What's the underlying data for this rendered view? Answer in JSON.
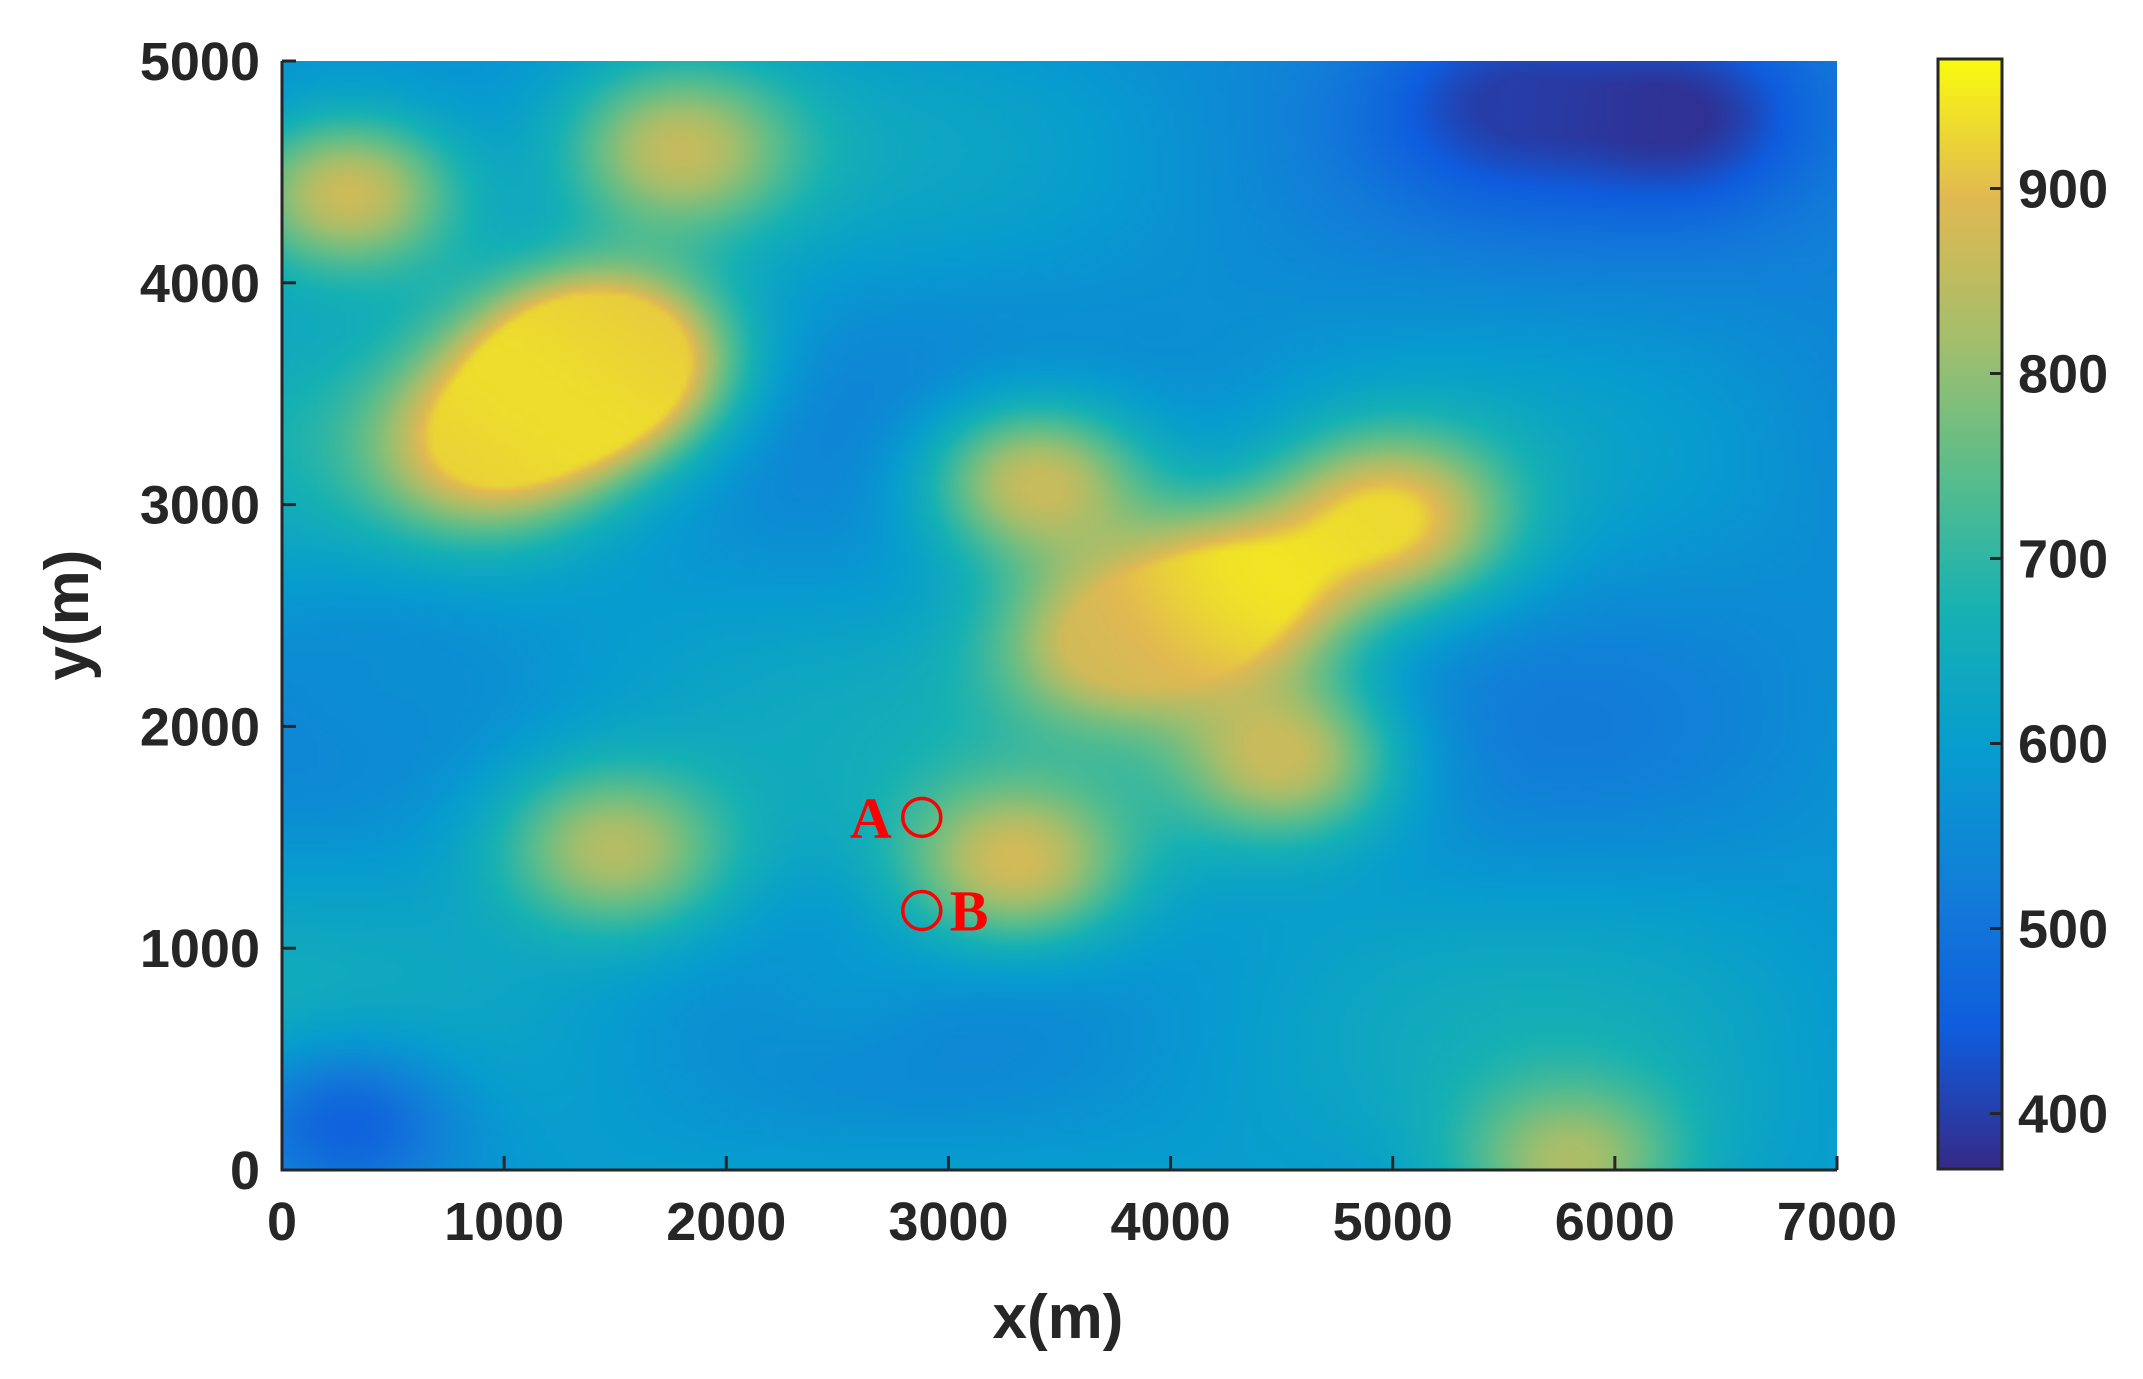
{
  "chart_data": {
    "type": "heatmap",
    "title": "",
    "xlabel": "x(m)",
    "ylabel": "y(m)",
    "xlim": [
      0,
      7000
    ],
    "ylim": [
      0,
      5000
    ],
    "x_ticks": [
      "0",
      "1000",
      "2000",
      "3000",
      "4000",
      "5000",
      "6000",
      "7000"
    ],
    "y_ticks": [
      "0",
      "1000",
      "2000",
      "3000",
      "4000",
      "5000"
    ],
    "colorbar": {
      "colormap": "parula",
      "range": [
        370,
        970
      ],
      "ticks": [
        "400",
        "500",
        "600",
        "700",
        "800",
        "900"
      ]
    },
    "grid": false,
    "field_features": [
      {
        "x": 1300,
        "y": 3550,
        "value": 965
      },
      {
        "x": 900,
        "y": 3250,
        "value": 920
      },
      {
        "x": 1500,
        "y": 3700,
        "value": 900
      },
      {
        "x": 300,
        "y": 4400,
        "value": 870
      },
      {
        "x": 1800,
        "y": 4600,
        "value": 860
      },
      {
        "x": 4300,
        "y": 2600,
        "value": 955
      },
      {
        "x": 5000,
        "y": 2950,
        "value": 930
      },
      {
        "x": 3700,
        "y": 2350,
        "value": 870
      },
      {
        "x": 3400,
        "y": 3100,
        "value": 860
      },
      {
        "x": 3300,
        "y": 1400,
        "value": 880
      },
      {
        "x": 1500,
        "y": 1450,
        "value": 840
      },
      {
        "x": 4500,
        "y": 1850,
        "value": 860
      },
      {
        "x": 5800,
        "y": 50,
        "value": 830
      },
      {
        "x": 6300,
        "y": 4750,
        "value": 380
      },
      {
        "x": 5500,
        "y": 4800,
        "value": 400
      },
      {
        "x": 300,
        "y": 200,
        "value": 460
      },
      {
        "x": 500,
        "y": 2200,
        "value": 560
      },
      {
        "x": 2500,
        "y": 850,
        "value": 580
      }
    ],
    "annotations": [
      {
        "label": "A",
        "x": 2880,
        "y": 1590
      },
      {
        "label": "B",
        "x": 2880,
        "y": 1170
      }
    ]
  },
  "colors": {
    "marker": "#ff0000",
    "axis": "#262626"
  }
}
